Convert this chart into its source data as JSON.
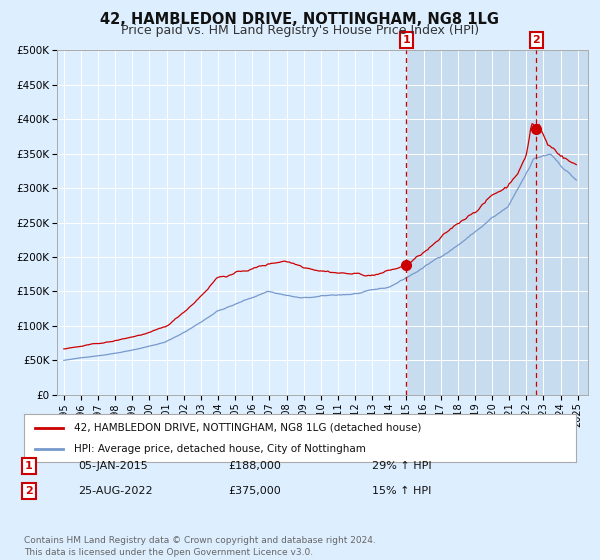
{
  "title": "42, HAMBLEDON DRIVE, NOTTINGHAM, NG8 1LG",
  "subtitle": "Price paid vs. HM Land Registry's House Price Index (HPI)",
  "title_fontsize": 10.5,
  "subtitle_fontsize": 9,
  "bg_color": "#ddeeff",
  "plot_bg_color": "#ddeeff",
  "grid_color": "#ffffff",
  "red_line_color": "#cc0000",
  "blue_line_color": "#7799cc",
  "shade_color": "#c8dcf0",
  "ylim": [
    0,
    500000
  ],
  "yticks": [
    0,
    50000,
    100000,
    150000,
    200000,
    250000,
    300000,
    350000,
    400000,
    450000,
    500000
  ],
  "xlim_left": 1994.6,
  "xlim_right": 2025.6,
  "legend_red": "42, HAMBLEDON DRIVE, NOTTINGHAM, NG8 1LG (detached house)",
  "legend_blue": "HPI: Average price, detached house, City of Nottingham",
  "annotation1_num": "1",
  "annotation1_date": "05-JAN-2015",
  "annotation1_price": "£188,000",
  "annotation1_hpi": "29% ↑ HPI",
  "annotation2_num": "2",
  "annotation2_date": "25-AUG-2022",
  "annotation2_price": "£375,000",
  "annotation2_hpi": "15% ↑ HPI",
  "footer": "Contains HM Land Registry data © Crown copyright and database right 2024.\nThis data is licensed under the Open Government Licence v3.0.",
  "m1_year": 2015.0,
  "m2_year": 2022.65,
  "m1_value": 188000,
  "m2_value": 375000
}
